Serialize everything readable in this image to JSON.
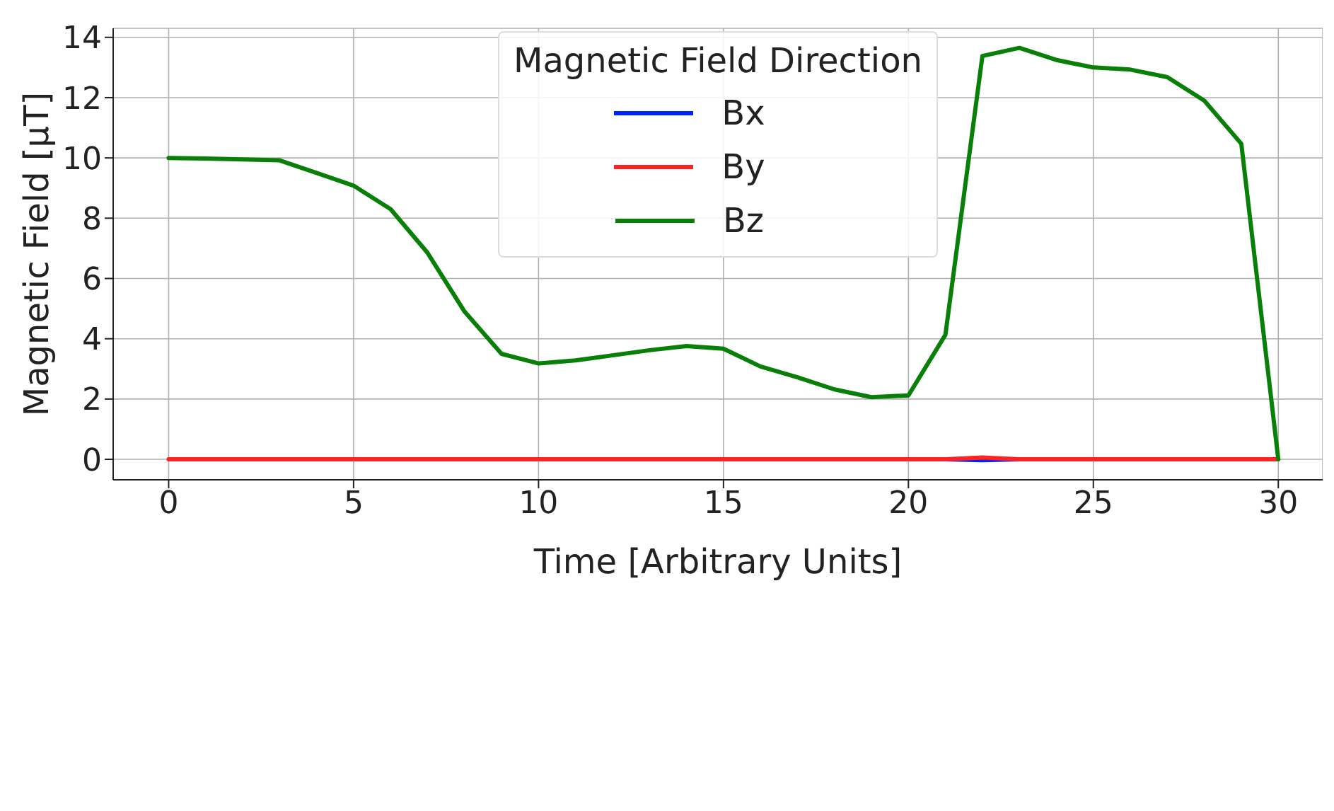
{
  "chart_data": {
    "type": "line",
    "xlabel": "Time [Arbitrary Units]",
    "ylabel": "Magnetic Field [μT]",
    "legend_title": "Magnetic Field Direction",
    "x": [
      0,
      1,
      2,
      3,
      4,
      5,
      6,
      7,
      8,
      9,
      10,
      11,
      12,
      13,
      14,
      15,
      16,
      17,
      18,
      19,
      20,
      21,
      22,
      23,
      24,
      25,
      26,
      27,
      28,
      29,
      30
    ],
    "series": [
      {
        "name": "Bx",
        "color": "#0022ff",
        "values": [
          null,
          null,
          null,
          null,
          null,
          null,
          null,
          null,
          null,
          null,
          null,
          null,
          null,
          null,
          null,
          null,
          null,
          null,
          null,
          null,
          null,
          0,
          -0.03,
          0,
          null,
          null,
          null,
          null,
          null,
          null,
          null
        ]
      },
      {
        "name": "By",
        "color": "#ff2222",
        "values": [
          0,
          0,
          0,
          0,
          0,
          0,
          0,
          0,
          0,
          0,
          0,
          0,
          0,
          0,
          0,
          0,
          0,
          0,
          0,
          0,
          0,
          0,
          0.06,
          0,
          0,
          0,
          0,
          0,
          0,
          0,
          0
        ]
      },
      {
        "name": "Bz",
        "color": "#088008",
        "values": [
          10.0,
          9.98,
          9.95,
          9.92,
          9.5,
          9.08,
          8.3,
          6.85,
          4.9,
          3.5,
          3.18,
          3.28,
          3.45,
          3.62,
          3.76,
          3.67,
          3.08,
          2.72,
          2.32,
          2.06,
          2.12,
          4.13,
          13.38,
          13.65,
          13.25,
          13.0,
          12.93,
          12.68,
          11.9,
          10.47,
          0
        ]
      }
    ],
    "xlim": [
      -1.5,
      31.2
    ],
    "xticks": [
      0,
      5,
      10,
      15,
      20,
      25,
      30
    ],
    "ylim": [
      -0.68,
      14.3
    ],
    "yticks": [
      0,
      2,
      4,
      6,
      8,
      10,
      12,
      14
    ],
    "grid": true,
    "legend": "top",
    "line_style": "solid",
    "marker": "none"
  }
}
